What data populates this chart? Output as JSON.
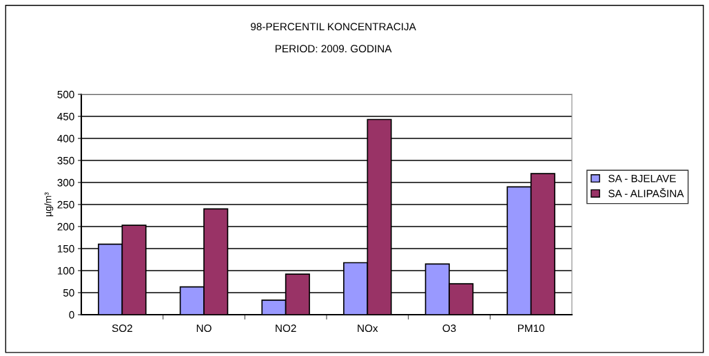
{
  "chart_data": {
    "type": "bar",
    "title": "98-PERCENTIL KONCENTRACIJA",
    "subtitle": "PERIOD: 2009. GODINA",
    "ylabel": "µg/m³",
    "categories": [
      "SO2",
      "NO",
      "NO2",
      "NOx",
      "O3",
      "PM10"
    ],
    "series": [
      {
        "name": "SA - BJELAVE",
        "color": "#9999ff",
        "values": [
          160,
          63,
          33,
          118,
          115,
          290
        ]
      },
      {
        "name": "SA - ALIPAŠINA",
        "color": "#993366",
        "values": [
          203,
          240,
          92,
          443,
          70,
          320
        ]
      }
    ],
    "ylim": [
      0,
      500
    ],
    "yticks": [
      0,
      50,
      100,
      150,
      200,
      250,
      300,
      350,
      400,
      450,
      500
    ],
    "grid": "y",
    "legend": "right"
  }
}
